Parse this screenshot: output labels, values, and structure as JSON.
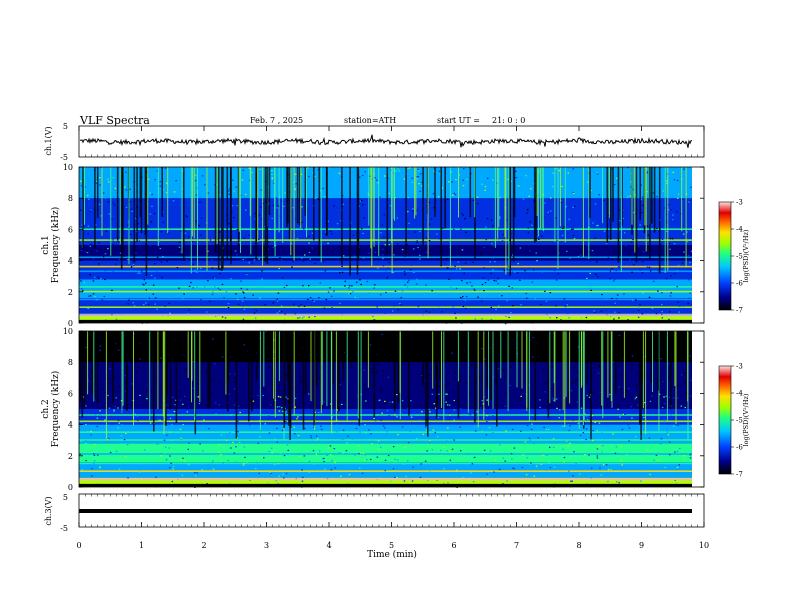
{
  "header": {
    "title": "VLF Spectra",
    "date": "Feb. 7 , 2025",
    "station": "station=ATH",
    "start_label": "start UT =",
    "start_time": "21: 0 : 0"
  },
  "chart_data": [
    {
      "type": "line",
      "name": "ch1-waveform",
      "ylabel": "ch.1(V)",
      "ylim": [
        -5,
        5
      ],
      "yticks": [
        "5",
        "-5"
      ],
      "xlim": [
        0,
        10
      ]
    },
    {
      "type": "heatmap",
      "name": "ch1-spectrogram",
      "ylabel": "ch.1 Frequency (kHz)",
      "ylim": [
        0,
        10
      ],
      "yticks": [
        "10",
        "8",
        "6",
        "4",
        "2",
        "0"
      ],
      "colorbar": {
        "label": "log(PSD)(V²/Hz)",
        "range": [
          -7,
          -3
        ],
        "ticks": [
          "-3",
          "-4",
          "-5",
          "-6",
          "-7"
        ]
      },
      "bands_khz": [
        0.5,
        1.0,
        1.5,
        2.0,
        2.3,
        3.3,
        3.6,
        4.2,
        5.3,
        6.0
      ]
    },
    {
      "type": "heatmap",
      "name": "ch2-spectrogram",
      "ylabel": "ch.2 Frequency (kHz)",
      "ylim": [
        0,
        10
      ],
      "yticks": [
        "10",
        "8",
        "6",
        "4",
        "2",
        "0"
      ],
      "colorbar": {
        "label": "log(PSD)(V²/Hz)",
        "range": [
          -7,
          -3
        ],
        "ticks": [
          "-3",
          "-4",
          "-5",
          "-6",
          "-7"
        ]
      },
      "bands_khz": [
        0.5,
        1.0,
        1.5,
        2.1,
        2.4,
        3.0,
        3.5,
        4.2,
        4.6
      ]
    },
    {
      "type": "line",
      "name": "ch3-waveform",
      "ylabel": "ch.3(V)",
      "ylim": [
        -5,
        5
      ],
      "yticks": [
        "5",
        "-5"
      ],
      "xlim": [
        0,
        10
      ]
    }
  ],
  "xaxis": {
    "label": "Time (min)",
    "ticks": [
      "0",
      "1",
      "2",
      "3",
      "4",
      "5",
      "6",
      "7",
      "8",
      "9",
      "10"
    ]
  }
}
